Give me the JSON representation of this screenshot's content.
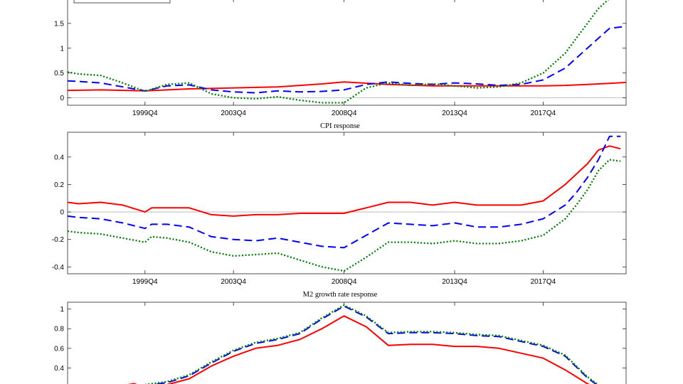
{
  "chart_data": [
    {
      "type": "line",
      "title": "",
      "xlabel": "",
      "ylabel": "",
      "x_range": [
        1996.5,
        2021.75
      ],
      "xticks": [
        {
          "x": 2000.0,
          "label": "1999Q4"
        },
        {
          "x": 2004.0,
          "label": "2003Q4"
        },
        {
          "x": 2009.0,
          "label": "2008Q4"
        },
        {
          "x": 2014.0,
          "label": "2013Q4"
        },
        {
          "x": 2018.0,
          "label": "2017Q4"
        }
      ],
      "ylim": [
        -0.15,
        2.0
      ],
      "yticks": [
        0,
        0.5,
        1,
        1.5
      ],
      "ytick_labels": [
        "0",
        "0.5",
        "1",
        "1.5"
      ],
      "zero_line": true,
      "grid": false,
      "legend": "top-left (entries cropped)",
      "series": [
        {
          "style": "solid",
          "color": "#ff0000",
          "x": [
            1996.5,
            1998,
            2000,
            2002,
            2004,
            2006,
            2008,
            2009,
            2011,
            2013,
            2015,
            2017,
            2018,
            2019,
            2020,
            2021,
            2021.75
          ],
          "y": [
            0.15,
            0.16,
            0.14,
            0.18,
            0.2,
            0.22,
            0.28,
            0.32,
            0.27,
            0.24,
            0.24,
            0.24,
            0.24,
            0.25,
            0.27,
            0.29,
            0.31
          ]
        },
        {
          "style": "dashed",
          "color": "#0000ff",
          "x": [
            1996.5,
            1997,
            1998,
            1999,
            2000,
            2001,
            2002,
            2003,
            2004,
            2005,
            2006,
            2007,
            2008,
            2009,
            2010,
            2011,
            2012,
            2013,
            2014,
            2015,
            2016,
            2017,
            2018,
            2019,
            2020,
            2020.5,
            2021,
            2021.75
          ],
          "y": [
            0.34,
            0.33,
            0.3,
            0.22,
            0.14,
            0.24,
            0.26,
            0.16,
            0.12,
            0.1,
            0.14,
            0.12,
            0.13,
            0.16,
            0.27,
            0.32,
            0.29,
            0.27,
            0.3,
            0.28,
            0.25,
            0.27,
            0.36,
            0.6,
            1.0,
            1.2,
            1.4,
            1.44
          ]
        },
        {
          "style": "dotted",
          "color": "#008000",
          "x": [
            1996.5,
            1997,
            1998,
            1999,
            2000,
            2001,
            2002,
            2003,
            2004,
            2005,
            2006,
            2007,
            2008,
            2009,
            2010,
            2011,
            2012,
            2013,
            2014,
            2015,
            2016,
            2017,
            2018,
            2019,
            2019.5,
            2020,
            2020.5,
            2021
          ],
          "y": [
            0.52,
            0.48,
            0.45,
            0.3,
            0.13,
            0.27,
            0.3,
            0.08,
            0.0,
            -0.02,
            0.02,
            -0.05,
            -0.1,
            -0.1,
            0.2,
            0.3,
            0.25,
            0.28,
            0.24,
            0.2,
            0.22,
            0.3,
            0.5,
            0.9,
            1.2,
            1.5,
            1.8,
            2.0
          ]
        }
      ]
    },
    {
      "type": "line",
      "title": "CPI response",
      "xlabel": "",
      "ylabel": "",
      "x_range": [
        1996.5,
        2021.75
      ],
      "xticks": [
        {
          "x": 2000.0,
          "label": "1999Q4"
        },
        {
          "x": 2004.0,
          "label": "2003Q4"
        },
        {
          "x": 2009.0,
          "label": "2008Q4"
        },
        {
          "x": 2014.0,
          "label": "2013Q4"
        },
        {
          "x": 2018.0,
          "label": "2017Q4"
        }
      ],
      "ylim": [
        -0.45,
        0.58
      ],
      "yticks": [
        -0.4,
        -0.2,
        0,
        0.2,
        0.4
      ],
      "ytick_labels": [
        "-0.4",
        "-0.2",
        "0",
        "0.2",
        "0.4"
      ],
      "zero_line": true,
      "grid": false,
      "series": [
        {
          "style": "solid",
          "color": "#ff0000",
          "x": [
            1996.5,
            1997,
            1998,
            1999,
            2000,
            2000.3,
            2001,
            2002,
            2003,
            2004,
            2005,
            2006,
            2007,
            2008,
            2009,
            2010,
            2011,
            2012,
            2013,
            2014,
            2015,
            2016,
            2017,
            2018,
            2019,
            2020,
            2020.5,
            2021,
            2021.5
          ],
          "y": [
            0.07,
            0.06,
            0.07,
            0.05,
            0.0,
            0.03,
            0.03,
            0.03,
            -0.02,
            -0.03,
            -0.02,
            -0.02,
            -0.01,
            -0.01,
            -0.01,
            0.03,
            0.07,
            0.07,
            0.05,
            0.07,
            0.05,
            0.05,
            0.05,
            0.08,
            0.2,
            0.35,
            0.45,
            0.48,
            0.46
          ]
        },
        {
          "style": "dashed",
          "color": "#0000ff",
          "x": [
            1996.5,
            1997,
            1998,
            1999,
            2000,
            2000.3,
            2001,
            2002,
            2003,
            2004,
            2005,
            2006,
            2007,
            2008,
            2009,
            2010,
            2011,
            2012,
            2013,
            2014,
            2015,
            2016,
            2017,
            2018,
            2019,
            2019.5,
            2020,
            2020.5,
            2021,
            2021.5
          ],
          "y": [
            -0.03,
            -0.04,
            -0.05,
            -0.08,
            -0.12,
            -0.09,
            -0.09,
            -0.11,
            -0.18,
            -0.2,
            -0.21,
            -0.19,
            -0.22,
            -0.25,
            -0.26,
            -0.17,
            -0.08,
            -0.09,
            -0.1,
            -0.08,
            -0.11,
            -0.11,
            -0.09,
            -0.05,
            0.05,
            0.14,
            0.25,
            0.38,
            0.55,
            0.55
          ]
        },
        {
          "style": "dotted",
          "color": "#008000",
          "x": [
            1996.5,
            1997,
            1998,
            1999,
            2000,
            2000.3,
            2001,
            2002,
            2003,
            2004,
            2005,
            2006,
            2007,
            2008,
            2009,
            2010,
            2011,
            2012,
            2013,
            2014,
            2015,
            2016,
            2017,
            2018,
            2019,
            2019.5,
            2020,
            2020.5,
            2021,
            2021.5
          ],
          "y": [
            -0.14,
            -0.15,
            -0.16,
            -0.19,
            -0.22,
            -0.18,
            -0.19,
            -0.22,
            -0.29,
            -0.32,
            -0.31,
            -0.3,
            -0.35,
            -0.4,
            -0.43,
            -0.33,
            -0.22,
            -0.22,
            -0.23,
            -0.21,
            -0.23,
            -0.23,
            -0.21,
            -0.17,
            -0.05,
            0.05,
            0.16,
            0.3,
            0.38,
            0.37
          ]
        }
      ]
    },
    {
      "type": "line",
      "title": "M2 growth rate response",
      "xlabel": "",
      "ylabel": "",
      "x_range": [
        1996.5,
        2021.75
      ],
      "ylim": [
        0.2,
        1.07
      ],
      "yticks": [
        0.4,
        0.6,
        0.8,
        1
      ],
      "ytick_labels": [
        "0.4",
        "0.6",
        "0.8",
        "1"
      ],
      "zero_line": false,
      "grid": false,
      "note": "lower part of panel cropped",
      "series": [
        {
          "style": "solid",
          "color": "#ff0000",
          "x": [
            1999,
            1999.5,
            2000,
            2001,
            2002,
            2003,
            2004,
            2005,
            2006,
            2007,
            2008,
            2009,
            2010,
            2011,
            2012,
            2013,
            2014,
            2015,
            2016,
            2017,
            2018,
            2019,
            2020,
            2020.4
          ],
          "y": [
            0.22,
            0.24,
            0.2,
            0.23,
            0.29,
            0.42,
            0.52,
            0.6,
            0.63,
            0.69,
            0.8,
            0.93,
            0.82,
            0.63,
            0.64,
            0.64,
            0.62,
            0.62,
            0.6,
            0.55,
            0.5,
            0.38,
            0.24,
            0.2
          ]
        },
        {
          "style": "dashed",
          "color": "#0000ff",
          "x": [
            2000,
            2001,
            2002,
            2003,
            2004,
            2005,
            2006,
            2007,
            2008,
            2009,
            2010,
            2011,
            2012,
            2013,
            2014,
            2015,
            2016,
            2017,
            2018,
            2019,
            2020,
            2020.6
          ],
          "y": [
            0.22,
            0.25,
            0.32,
            0.45,
            0.57,
            0.65,
            0.69,
            0.75,
            0.9,
            1.03,
            0.92,
            0.75,
            0.76,
            0.76,
            0.75,
            0.73,
            0.72,
            0.67,
            0.62,
            0.52,
            0.3,
            0.2
          ]
        },
        {
          "style": "dotted",
          "color": "#008000",
          "x": [
            2000,
            2001,
            2002,
            2003,
            2004,
            2005,
            2006,
            2007,
            2008,
            2009,
            2010,
            2011,
            2012,
            2013,
            2014,
            2015,
            2016,
            2017,
            2018,
            2019,
            2020,
            2020.6
          ],
          "y": [
            0.23,
            0.26,
            0.33,
            0.46,
            0.58,
            0.66,
            0.7,
            0.76,
            0.91,
            1.04,
            0.93,
            0.76,
            0.77,
            0.77,
            0.76,
            0.74,
            0.73,
            0.68,
            0.63,
            0.53,
            0.31,
            0.21
          ]
        }
      ]
    }
  ]
}
